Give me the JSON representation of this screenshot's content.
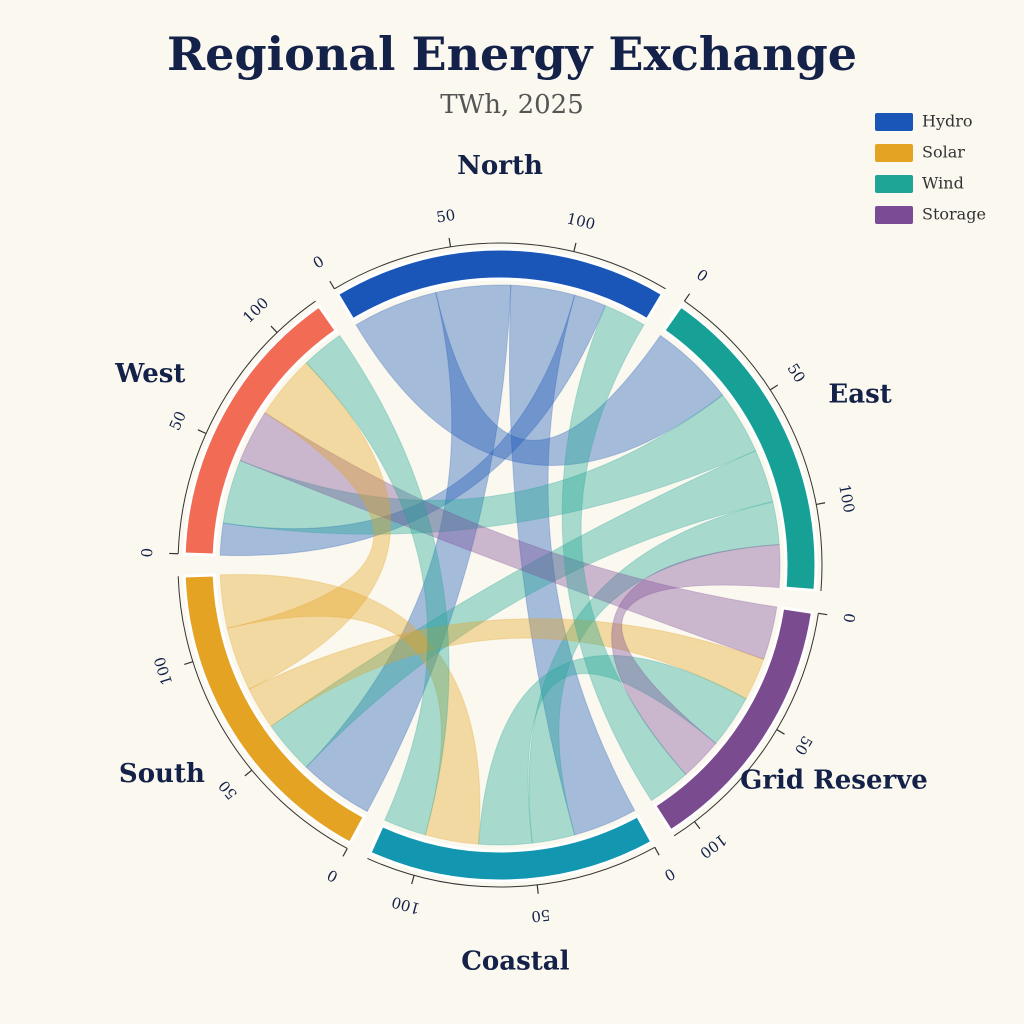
{
  "chart_data": {
    "type": "chord",
    "title": "Regional Energy Exchange",
    "subtitle": "TWh, 2025",
    "legend": "top-right",
    "types": [
      {
        "name": "Hydro",
        "color": "#1a56b8"
      },
      {
        "name": "Solar",
        "color": "#e5a323"
      },
      {
        "name": "Wind",
        "color": "#1fa596"
      },
      {
        "name": "Storage",
        "color": "#7b4b96"
      }
    ],
    "nodes": [
      {
        "name": "North",
        "color": "#1a56b8",
        "ticks": [
          0,
          50,
          100
        ]
      },
      {
        "name": "East",
        "color": "#17a096",
        "ticks": [
          0,
          50,
          100
        ]
      },
      {
        "name": "Grid Reserve",
        "color": "#7b4b8f",
        "ticks": [
          0,
          50,
          100
        ]
      },
      {
        "name": "Coastal",
        "color": "#1396b0",
        "ticks": [
          0,
          50,
          100
        ]
      },
      {
        "name": "South",
        "color": "#e5a323",
        "ticks": [
          0,
          50,
          100
        ]
      },
      {
        "name": "West",
        "color": "#f26b55",
        "ticks": [
          0,
          50,
          100
        ]
      }
    ],
    "flows": [
      {
        "source": 0,
        "target": 1,
        "type": 0,
        "value": 40
      },
      {
        "source": 0,
        "target": 4,
        "type": 0,
        "value": 35
      },
      {
        "source": 0,
        "target": 3,
        "type": 0,
        "value": 30
      },
      {
        "source": 0,
        "target": 5,
        "type": 0,
        "value": 15
      },
      {
        "source": 1,
        "target": 5,
        "type": 2,
        "value": 30
      },
      {
        "source": 1,
        "target": 4,
        "type": 2,
        "value": 25
      },
      {
        "source": 1,
        "target": 3,
        "type": 2,
        "value": 20
      },
      {
        "source": 5,
        "target": 2,
        "type": 3,
        "value": 25
      },
      {
        "source": 4,
        "target": 2,
        "type": 1,
        "value": 20
      },
      {
        "source": 4,
        "target": 5,
        "type": 1,
        "value": 30
      },
      {
        "source": 3,
        "target": 2,
        "type": 2,
        "value": 25
      },
      {
        "source": 2,
        "target": 1,
        "type": 3,
        "value": 20
      },
      {
        "source": 0,
        "target": 2,
        "type": 2,
        "value": 20
      },
      {
        "source": 4,
        "target": 3,
        "type": 1,
        "value": 25
      },
      {
        "source": 3,
        "target": 5,
        "type": 2,
        "value": 20
      }
    ]
  }
}
